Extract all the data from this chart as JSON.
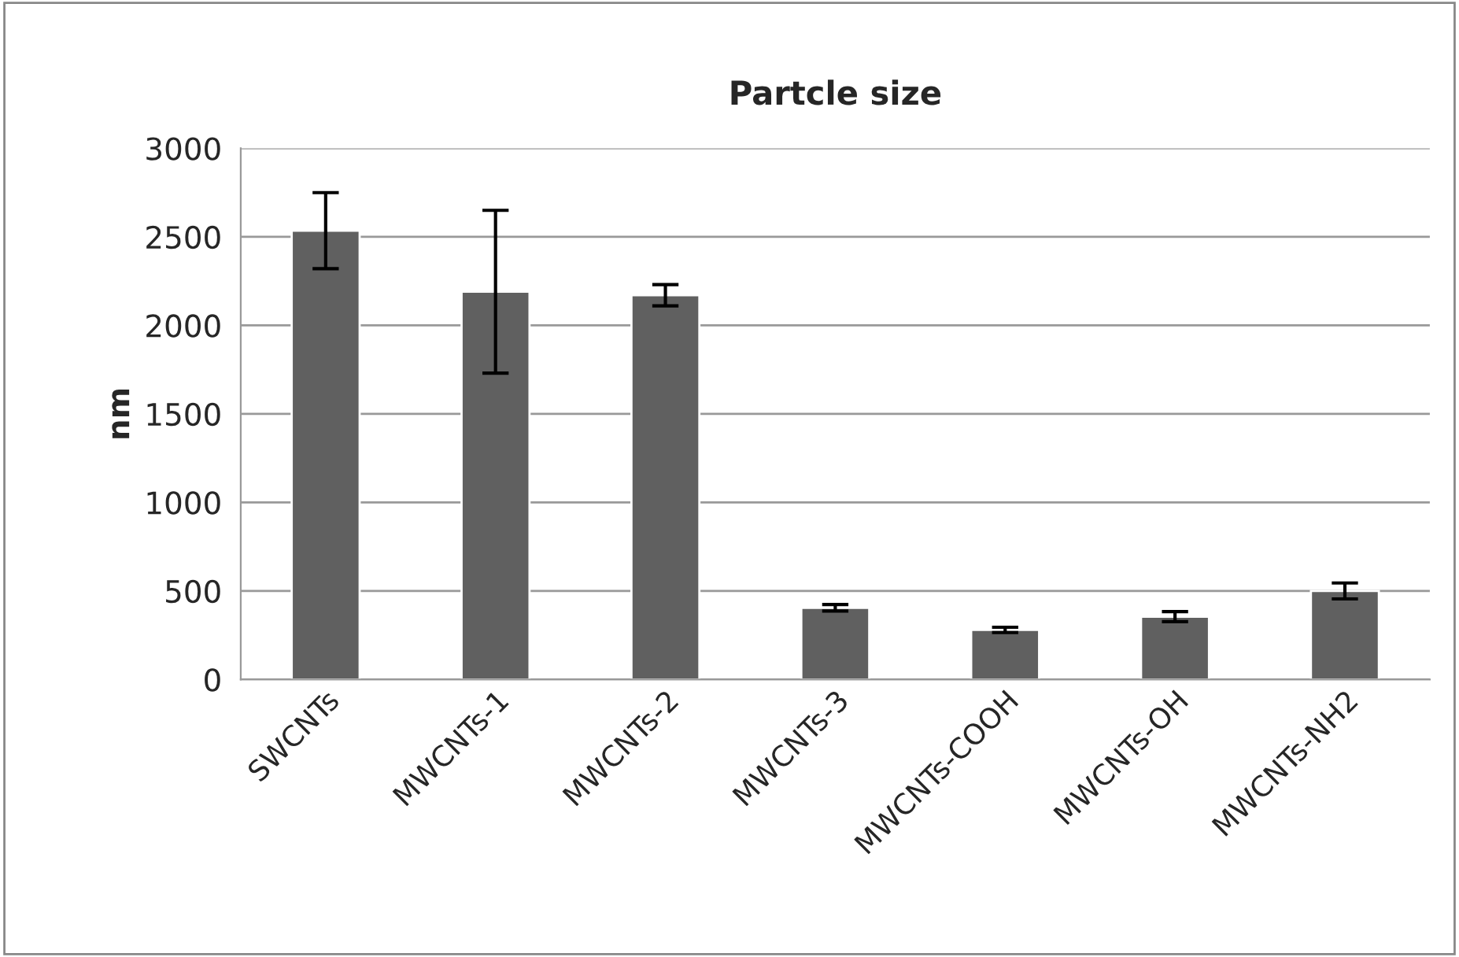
{
  "chart_data": {
    "type": "bar",
    "title": "Partcle size",
    "ylabel": "nm",
    "categories": [
      "SWCNTs",
      "MWCNTs-1",
      "MWCNTs-2",
      "MWCNTs-3",
      "MWCNTs-COOH",
      "MWCNTs-OH",
      "MWCNTs-NH2"
    ],
    "values": [
      2535,
      2190,
      2170,
      405,
      280,
      355,
      500
    ],
    "errors": [
      215,
      460,
      60,
      18,
      15,
      28,
      45
    ],
    "color": "#606060",
    "ylim": [
      0,
      3000
    ],
    "yticks": [
      0,
      500,
      1000,
      1500,
      2000,
      2500,
      3000
    ],
    "grid": "y",
    "legend": false
  }
}
